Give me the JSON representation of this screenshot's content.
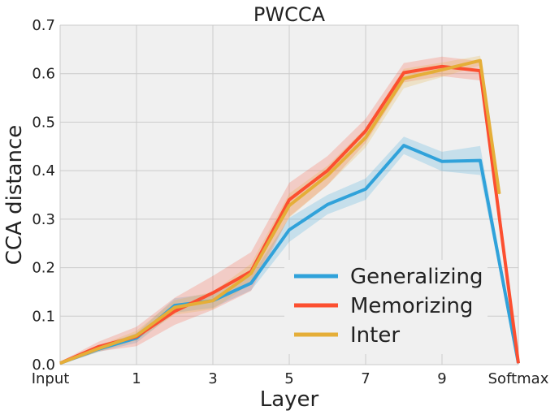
{
  "chart_data": {
    "type": "line",
    "title": "PWCCA",
    "xlabel": "Layer",
    "ylabel": "CCA distance",
    "x": [
      0,
      1,
      2,
      3,
      4,
      5,
      6,
      7,
      8,
      9,
      10,
      11
    ],
    "xlim": [
      0,
      11
    ],
    "ylim": [
      0,
      0.7
    ],
    "xticks": [
      {
        "x": 0,
        "label": "Input"
      },
      {
        "x": 2,
        "label": "1"
      },
      {
        "x": 4,
        "label": "3"
      },
      {
        "x": 6,
        "label": "5"
      },
      {
        "x": 8,
        "label": "7"
      },
      {
        "x": 10,
        "label": "9"
      },
      {
        "x": 12,
        "label": "Softmax"
      }
    ],
    "yticks": [
      {
        "y": 0.0,
        "label": "0.0"
      },
      {
        "y": 0.1,
        "label": "0.1"
      },
      {
        "y": 0.2,
        "label": "0.2"
      },
      {
        "y": 0.3,
        "label": "0.3"
      },
      {
        "y": 0.4,
        "label": "0.4"
      },
      {
        "y": 0.5,
        "label": "0.5"
      },
      {
        "y": 0.6,
        "label": "0.6"
      },
      {
        "y": 0.7,
        "label": "0.7"
      }
    ],
    "grid": true,
    "legend_position": "lower-right",
    "series": [
      {
        "name": "Generalizing",
        "color": "#30a2da",
        "x": [
          0,
          1,
          2,
          3,
          4,
          5,
          6,
          7,
          8,
          9,
          10,
          11,
          12
        ],
        "values": [
          0.003,
          0.032,
          0.055,
          0.122,
          0.132,
          0.168,
          0.278,
          0.33,
          0.362,
          0.452,
          0.419,
          0.421,
          0.003
        ],
        "band": [
          0.003,
          0.006,
          0.01,
          0.015,
          0.015,
          0.015,
          0.025,
          0.02,
          0.022,
          0.018,
          0.02,
          0.03,
          0.005
        ]
      },
      {
        "name": "Memorizing",
        "color": "#fc4f30",
        "x": [
          0,
          1,
          2,
          3,
          4,
          5,
          6,
          7,
          8,
          9,
          10,
          11,
          12
        ],
        "values": [
          0.003,
          0.037,
          0.058,
          0.11,
          0.148,
          0.192,
          0.34,
          0.4,
          0.482,
          0.602,
          0.615,
          0.606,
          0.003
        ],
        "band": [
          0.003,
          0.01,
          0.02,
          0.028,
          0.035,
          0.04,
          0.035,
          0.03,
          0.025,
          0.02,
          0.02,
          0.02,
          0.03
        ]
      },
      {
        "name": "Inter",
        "color": "#e5ae38",
        "x": [
          0,
          1,
          2,
          3,
          4,
          5,
          6,
          7,
          8,
          9,
          10,
          11,
          11.5
        ],
        "values": [
          0.003,
          0.033,
          0.06,
          0.118,
          0.132,
          0.188,
          0.328,
          0.39,
          0.468,
          0.59,
          0.608,
          0.627,
          0.352
        ],
        "band": [
          0.003,
          0.006,
          0.01,
          0.015,
          0.018,
          0.02,
          0.025,
          0.02,
          0.02,
          0.02,
          0.015,
          0.01,
          0.01
        ]
      }
    ]
  }
}
